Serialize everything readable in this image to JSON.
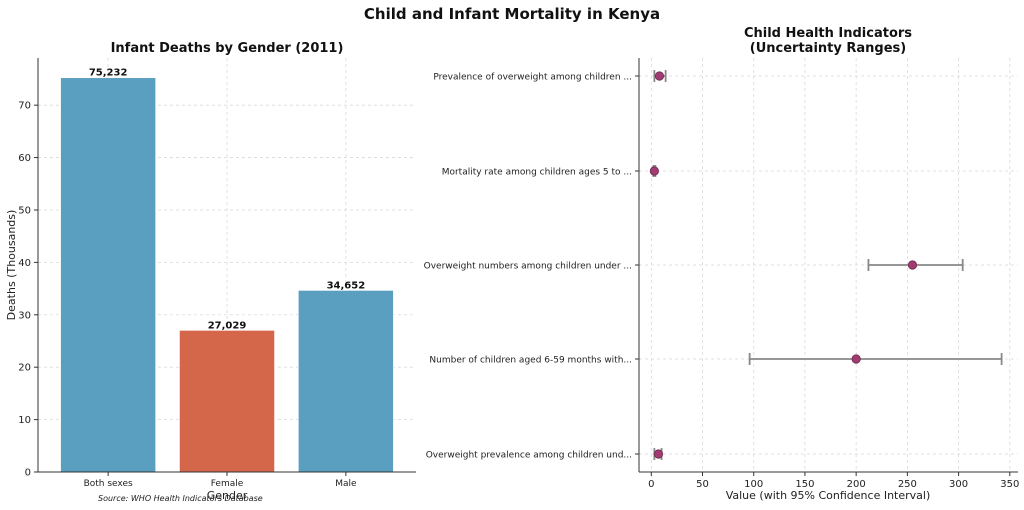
{
  "figure": {
    "title": "Child and Infant Mortality in Kenya",
    "source": "Source: WHO Health Indicators Database"
  },
  "chart_data": [
    {
      "type": "bar",
      "title": "Infant Deaths by Gender (2011)",
      "xlabel": "Gender",
      "ylabel": "Deaths (Thousands)",
      "categories": [
        "Both sexes",
        "Female",
        "Male"
      ],
      "values": [
        75.232,
        27.029,
        34.652
      ],
      "value_labels": [
        "75,232",
        "27,029",
        "34,652"
      ],
      "colors": [
        "#5a9fc0",
        "#d4664a",
        "#5a9fc0"
      ],
      "ylim": [
        0,
        79
      ],
      "yticks": [
        0,
        10,
        20,
        30,
        40,
        50,
        60,
        70
      ],
      "grid": true
    },
    {
      "type": "scatter",
      "subtype": "errorbar",
      "title_lines": [
        "Child Health Indicators",
        "(Uncertainty Ranges)"
      ],
      "xlabel": "Value (with 95% Confidence Interval)",
      "categories": [
        "Prevalence of overweight among children ...",
        "Mortality rate among children ages 5 to ...",
        "Overweight numbers among children under ...",
        "Number of children aged 6-59 months with...",
        "Overweight prevalence among children und..."
      ],
      "values": [
        8,
        3,
        255,
        200,
        7
      ],
      "lower": [
        3,
        2,
        212,
        96,
        3
      ],
      "upper": [
        14,
        4,
        304,
        342,
        10
      ],
      "xlim": [
        -12,
        358
      ],
      "xticks": [
        0,
        50,
        100,
        150,
        200,
        250,
        300,
        350
      ],
      "point_color": "#a23b72",
      "grid": true
    }
  ]
}
